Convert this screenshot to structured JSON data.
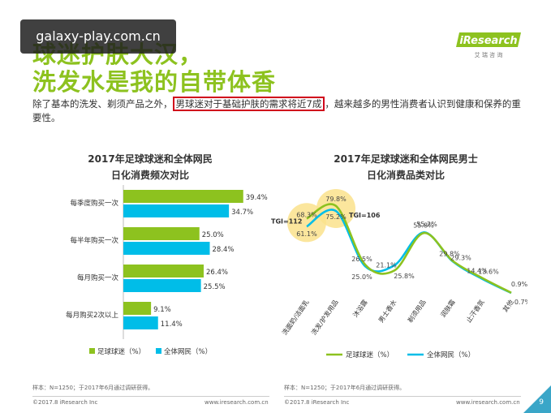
{
  "watermark": "galaxy-play.com.cn",
  "title_line1": "球迷护肤大汉，",
  "title_line2": "洗发水是我的自带体香",
  "logo": {
    "brand": "iResearch",
    "sub": "艾 瑞 咨 询"
  },
  "intro": {
    "before": "除了基本的洗发、剃须产品之外，",
    "highlight": "男球迷对于基础护肤的需求将近7成",
    "after": "，越来越多的男性消费者认识到健康和保养的重要性。"
  },
  "bar_chart": {
    "title_line1": "2017年足球球迷和全体网民",
    "title_line2": "日化消费频次对比"
  },
  "line_chart": {
    "title_line1": "2017年足球球迷和全体网民男士",
    "title_line2": "日化消费品类对比",
    "tgi1": "TGI=112",
    "tgi2": "TGI=106"
  },
  "legend": {
    "fans": "足球球迷（%）",
    "all": "全体网民（%）"
  },
  "notes": {
    "sample": "样本：N=1250；于2017年6月通过调研获得。",
    "copyright": "©2017.8 iResearch Inc",
    "site": "www.iresearch.com.cn"
  },
  "page_number": "9",
  "colors": {
    "fans": "#8dc21f",
    "all": "#00bde8",
    "title": "#8dc21f",
    "highlight_border": "#d0021b",
    "bubble": "#fae28c"
  },
  "chart_data": [
    {
      "type": "bar",
      "orientation": "horizontal",
      "title": "2017年足球球迷和全体网民日化消费频次对比",
      "categories": [
        "每季度购买一次",
        "每半年购买一次",
        "每月购买一次",
        "每月购买2次以上"
      ],
      "series": [
        {
          "name": "足球球迷（%）",
          "values": [
            39.4,
            25.0,
            26.4,
            9.1
          ],
          "labels": [
            "39.4%",
            "25.0%",
            "26.4%",
            "9.1%"
          ]
        },
        {
          "name": "全体网民（%）",
          "values": [
            34.7,
            28.4,
            25.5,
            11.4
          ],
          "labels": [
            "34.7%",
            "28.4%",
            "25.5%",
            "11.4%"
          ]
        }
      ],
      "xlim": [
        0,
        40
      ],
      "legend": "bottom"
    },
    {
      "type": "line",
      "title": "2017年足球球迷和全体网民男士日化消费品类对比",
      "categories": [
        "洗面奶/洁面乳",
        "洗发/护发用品",
        "沐浴露",
        "男士香水",
        "剃须用品",
        "润肤霜",
        "止汗香氛",
        "其他"
      ],
      "series": [
        {
          "name": "足球球迷（%）",
          "values": [
            68.3,
            79.8,
            26.5,
            21.1,
            55.2,
            29.8,
            14.4,
            0.9
          ],
          "labels": [
            "68.3%",
            "79.8%",
            "26.5%",
            "21.1%",
            "55.2%",
            "29.8%",
            "14.4%",
            "0.9%"
          ]
        },
        {
          "name": "全体网民（%）",
          "values": [
            61.1,
            75.2,
            25.0,
            25.8,
            55.8,
            29.3,
            13.6,
            0.7
          ],
          "labels": [
            "61.1%",
            "75.2%",
            "25.0%",
            "25.8%",
            "55.8%",
            "29.3%",
            "13.6%",
            "0.7%"
          ]
        }
      ],
      "ylim": [
        0,
        90
      ],
      "annotations": [
        "TGI=112",
        "TGI=106"
      ],
      "legend": "bottom"
    }
  ]
}
